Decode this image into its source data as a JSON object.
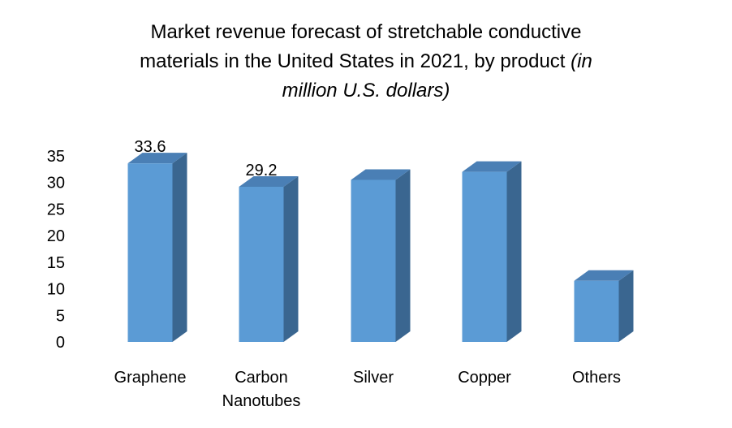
{
  "chart_data": {
    "type": "bar",
    "title_line1": "Market revenue forecast of stretchable conductive",
    "title_line2": "materials in the United States in 2021, by product",
    "title_suffix_line2": "(in",
    "title_line3": "million U.S. dollars)",
    "categories": [
      [
        "Graphene"
      ],
      [
        "Carbon",
        "Nanotubes"
      ],
      [
        "Silver"
      ],
      [
        "Copper"
      ],
      [
        "Others"
      ]
    ],
    "values": [
      33.6,
      29.2,
      30.5,
      32.0,
      11.5
    ],
    "data_labels": [
      "33.6",
      "29.2",
      null,
      null,
      null
    ],
    "y_ticks": [
      0,
      5,
      10,
      15,
      20,
      25,
      30,
      35
    ],
    "ylim": [
      0,
      35
    ],
    "xlabel": "",
    "ylabel": "",
    "colors": {
      "front": "#5B9BD5",
      "side": "#3A6690",
      "top": "#4A7FB5"
    }
  }
}
